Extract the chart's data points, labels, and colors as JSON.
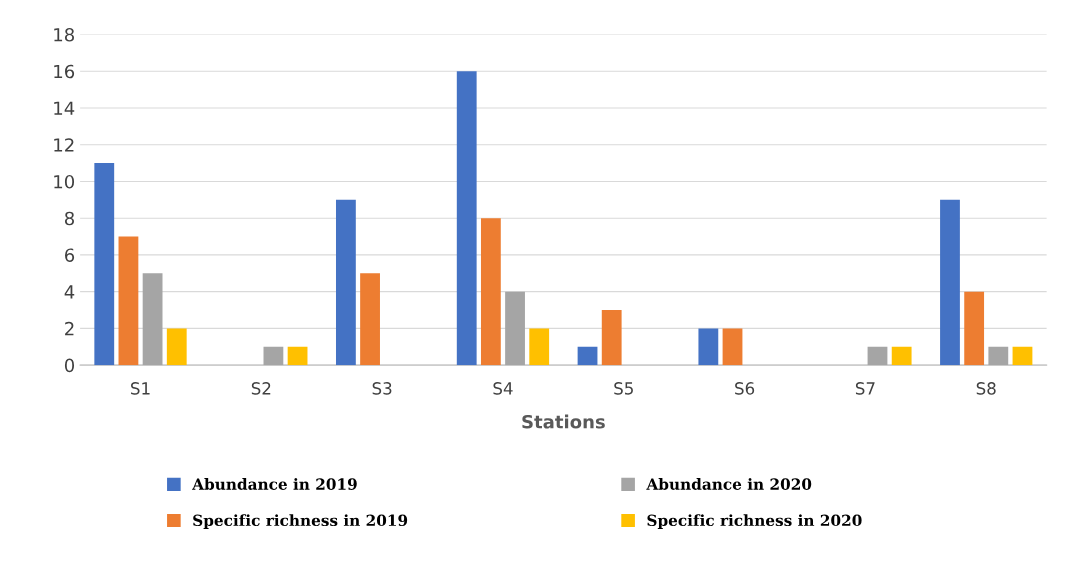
{
  "chart_data": {
    "type": "bar",
    "xlabel": "Stations",
    "categories": [
      "S1",
      "S2",
      "S3",
      "S4",
      "S5",
      "S6",
      "S7",
      "S8"
    ],
    "series": [
      {
        "name": "Abundance in 2019",
        "color": "#4472c4",
        "values": [
          11,
          0,
          9,
          16,
          1,
          2,
          0,
          9
        ]
      },
      {
        "name": "Specific richness in 2019",
        "color": "#ed7d31",
        "values": [
          7,
          0,
          5,
          8,
          3,
          2,
          0,
          4
        ]
      },
      {
        "name": "Abundance in 2020",
        "color": "#a5a5a5",
        "values": [
          5,
          1,
          0,
          4,
          0,
          0,
          1,
          1
        ]
      },
      {
        "name": "Specific richness in 2020",
        "color": "#ffc000",
        "values": [
          2,
          1,
          0,
          2,
          0,
          0,
          1,
          1
        ]
      }
    ],
    "ylim": [
      0,
      18
    ],
    "yticks": [
      0,
      2,
      4,
      6,
      8,
      10,
      12,
      14,
      16,
      18
    ],
    "grid": "y",
    "legend": "bottom"
  }
}
